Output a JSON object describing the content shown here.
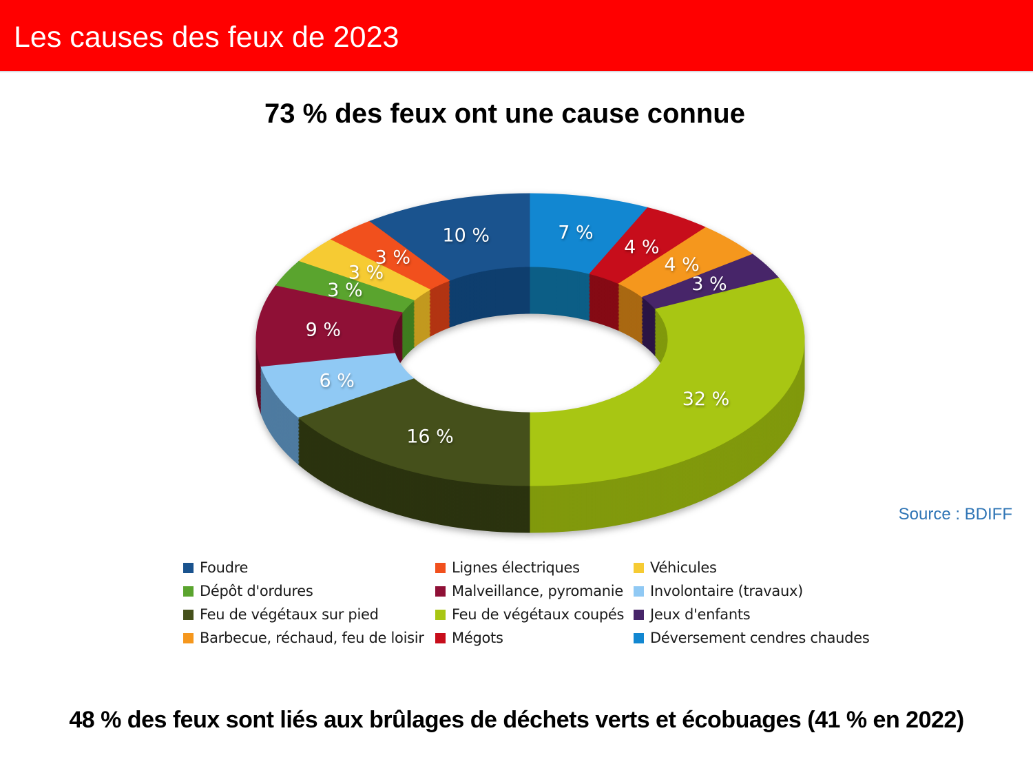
{
  "header": {
    "title": "Les causes des feux de 2023",
    "background_color": "#FF0000",
    "text_color": "#FFFFFF"
  },
  "subtitle": "73 % des feux ont une cause connue",
  "source": "Source : BDIFF",
  "source_color": "#2E74B5",
  "footer": "48 % des feux sont liés aux brûlages de déchets verts et écobuages (41 % en 2022)",
  "chart_data": {
    "type": "pie",
    "subtype": "3d-donut",
    "title": "73 % des feux ont une cause connue",
    "unit": "%",
    "label_format": "{value} %",
    "legend_position": "bottom",
    "legend_columns": 3,
    "draw_order": "counter-clockwise-from-top",
    "segments": [
      {
        "label": "Foudre",
        "value": 10,
        "color": "#1A538E",
        "side_color": "#0E3E6E"
      },
      {
        "label": "Lignes électriques",
        "value": 3,
        "color": "#F1501D",
        "side_color": "#B23413"
      },
      {
        "label": "Véhicules",
        "value": 3,
        "color": "#F6CB33",
        "side_color": "#C2991F"
      },
      {
        "label": "Dépôt d'ordures",
        "value": 3,
        "color": "#5AA42E",
        "side_color": "#3F7C1F"
      },
      {
        "label": "Malveillance, pyromanie",
        "value": 9,
        "color": "#8F1036",
        "side_color": "#630A24"
      },
      {
        "label": "Involontaire (travaux)",
        "value": 6,
        "color": "#90C9F4",
        "side_color": "#4E7BA0"
      },
      {
        "label": "Feu de végétaux sur pied",
        "value": 16,
        "color": "#45501B",
        "side_color": "#2B330F"
      },
      {
        "label": "Feu de végétaux coupés",
        "value": 32,
        "color": "#A8C613",
        "side_color": "#81990C"
      },
      {
        "label": "Jeux d'enfants",
        "value": 3,
        "color": "#472569",
        "side_color": "#2B1545"
      },
      {
        "label": "Barbecue, réchaud, feu de loisir",
        "value": 4,
        "color": "#F5971D",
        "side_color": "#A96812"
      },
      {
        "label": "Mégots",
        "value": 4,
        "color": "#C70D1B",
        "side_color": "#850A14"
      },
      {
        "label": "Déversement cendres chaudes",
        "value": 7,
        "color": "#1287D1",
        "side_color": "#0C5E86"
      }
    ]
  }
}
